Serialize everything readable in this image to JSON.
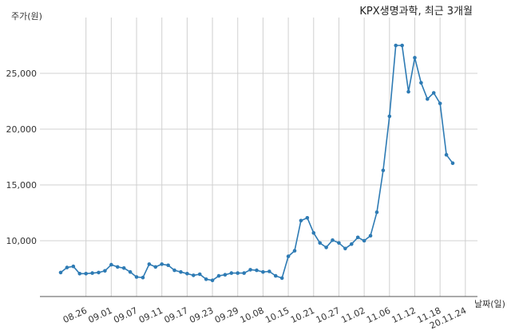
{
  "chart_data": {
    "type": "line",
    "title": "KPX생명과학, 최근 3개월",
    "ylabel": "주가(원)",
    "xlabel": "날짜(일)",
    "ylim": [
      5000,
      30000
    ],
    "yticks": [
      10000,
      15000,
      20000,
      25000
    ],
    "ytick_labels": [
      "10,000",
      "15,000",
      "20,000",
      "25,000"
    ],
    "xtick_labels": [
      "08.26",
      "09.01",
      "09.07",
      "09.11",
      "09.17",
      "09.23",
      "09.29",
      "10.08",
      "10.15",
      "10.21",
      "10.27",
      "11.02",
      "11.06",
      "11.12",
      "11.18",
      "20.11.24"
    ],
    "xtick_positions": [
      4,
      8,
      12,
      16,
      20,
      24,
      28,
      32,
      36,
      40,
      44,
      48,
      52,
      56,
      60,
      64
    ],
    "grid": true,
    "color": "#2e7bb4",
    "series": [
      {
        "name": "",
        "values": [
          7150,
          7600,
          7700,
          7050,
          7050,
          7100,
          7150,
          7300,
          7850,
          7650,
          7550,
          7200,
          6750,
          6700,
          7900,
          7650,
          7900,
          7800,
          7350,
          7200,
          7050,
          6900,
          7000,
          6550,
          6450,
          6850,
          6950,
          7100,
          7100,
          7100,
          7400,
          7350,
          7200,
          7250,
          6850,
          6650,
          8600,
          9100,
          11800,
          12050,
          10700,
          9800,
          9400,
          10050,
          9800,
          9300,
          9700,
          10300,
          10000,
          10450,
          12550,
          16300,
          21150,
          27500,
          27500,
          23350,
          26400,
          24150,
          22700,
          23250,
          22300,
          17700,
          16950
        ]
      }
    ]
  }
}
